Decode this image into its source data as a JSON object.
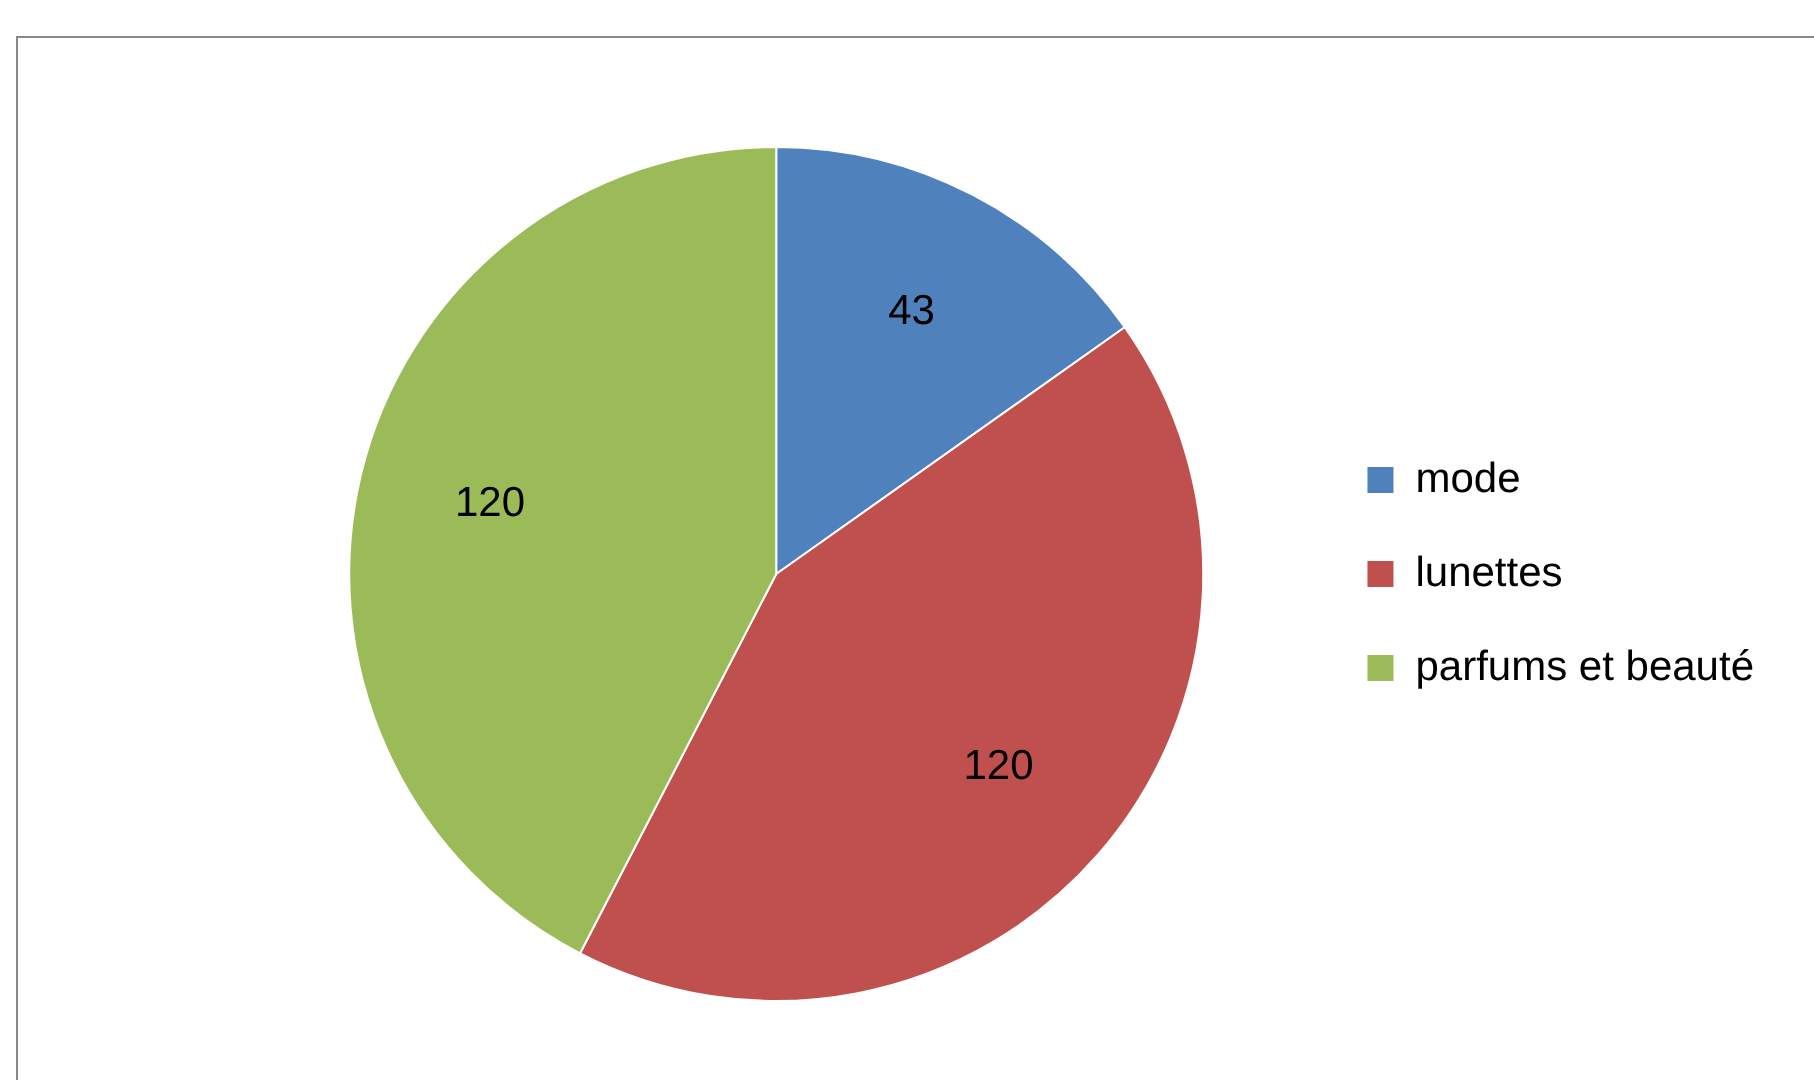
{
  "chart_data": {
    "type": "pie",
    "categories": [
      "mode",
      "lunettes",
      "parfums et beauté"
    ],
    "values": [
      43,
      120,
      120
    ],
    "colors": [
      "#4f81bd",
      "#c0504d",
      "#9bbb59"
    ],
    "data_labels": true,
    "legend": "right"
  }
}
